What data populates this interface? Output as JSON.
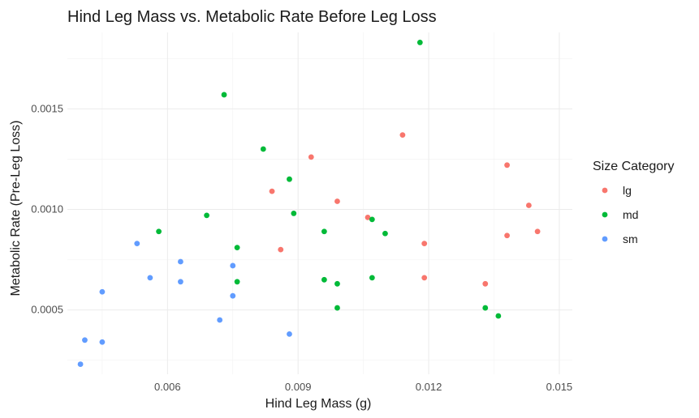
{
  "chart_data": {
    "type": "scatter",
    "title": "Hind Leg Mass vs. Metabolic Rate Before Leg Loss",
    "xlabel": "Hind Leg Mass (g)",
    "ylabel": "Metabolic Rate (Pre-Leg Loss)",
    "xlim": [
      0.0037,
      0.0153
    ],
    "ylim": [
      0.00018,
      0.00188
    ],
    "x_ticks": [
      {
        "value": 0.006,
        "label": "0.006"
      },
      {
        "value": 0.009,
        "label": "0.009"
      },
      {
        "value": 0.012,
        "label": "0.012"
      },
      {
        "value": 0.015,
        "label": "0.015"
      }
    ],
    "y_ticks": [
      {
        "value": 0.0005,
        "label": "0.0005"
      },
      {
        "value": 0.001,
        "label": "0.0010"
      },
      {
        "value": 0.0015,
        "label": "0.0015"
      }
    ],
    "grid": true,
    "legend_position": "right",
    "legend_title": "Size Category",
    "series": [
      {
        "name": "lg",
        "color": "#F8766D",
        "points": [
          {
            "x": 0.0084,
            "y": 0.00109
          },
          {
            "x": 0.0086,
            "y": 0.0008
          },
          {
            "x": 0.0093,
            "y": 0.00126
          },
          {
            "x": 0.0099,
            "y": 0.00104
          },
          {
            "x": 0.0106,
            "y": 0.00096
          },
          {
            "x": 0.0114,
            "y": 0.00137
          },
          {
            "x": 0.0119,
            "y": 0.00083
          },
          {
            "x": 0.0119,
            "y": 0.00066
          },
          {
            "x": 0.0133,
            "y": 0.00063
          },
          {
            "x": 0.0138,
            "y": 0.00122
          },
          {
            "x": 0.0138,
            "y": 0.00087
          },
          {
            "x": 0.0143,
            "y": 0.00102
          },
          {
            "x": 0.0145,
            "y": 0.00089
          }
        ]
      },
      {
        "name": "md",
        "color": "#00BA38",
        "points": [
          {
            "x": 0.0058,
            "y": 0.00089
          },
          {
            "x": 0.0069,
            "y": 0.00097
          },
          {
            "x": 0.0073,
            "y": 0.00157
          },
          {
            "x": 0.0076,
            "y": 0.00081
          },
          {
            "x": 0.0076,
            "y": 0.00064
          },
          {
            "x": 0.0082,
            "y": 0.0013
          },
          {
            "x": 0.0088,
            "y": 0.00115
          },
          {
            "x": 0.0089,
            "y": 0.00098
          },
          {
            "x": 0.0096,
            "y": 0.00089
          },
          {
            "x": 0.0096,
            "y": 0.00065
          },
          {
            "x": 0.0099,
            "y": 0.00063
          },
          {
            "x": 0.0099,
            "y": 0.00051
          },
          {
            "x": 0.0107,
            "y": 0.00095
          },
          {
            "x": 0.0107,
            "y": 0.00066
          },
          {
            "x": 0.011,
            "y": 0.00088
          },
          {
            "x": 0.0118,
            "y": 0.00183
          },
          {
            "x": 0.0133,
            "y": 0.00051
          },
          {
            "x": 0.0136,
            "y": 0.00047
          }
        ]
      },
      {
        "name": "sm",
        "color": "#619CFF",
        "points": [
          {
            "x": 0.004,
            "y": 0.00023
          },
          {
            "x": 0.0041,
            "y": 0.00035
          },
          {
            "x": 0.0045,
            "y": 0.00059
          },
          {
            "x": 0.0045,
            "y": 0.00034
          },
          {
            "x": 0.0053,
            "y": 0.00083
          },
          {
            "x": 0.0056,
            "y": 0.00066
          },
          {
            "x": 0.0063,
            "y": 0.00074
          },
          {
            "x": 0.0063,
            "y": 0.00064
          },
          {
            "x": 0.0072,
            "y": 0.00045
          },
          {
            "x": 0.0075,
            "y": 0.00072
          },
          {
            "x": 0.0075,
            "y": 0.00057
          },
          {
            "x": 0.0088,
            "y": 0.00038
          }
        ]
      }
    ]
  }
}
